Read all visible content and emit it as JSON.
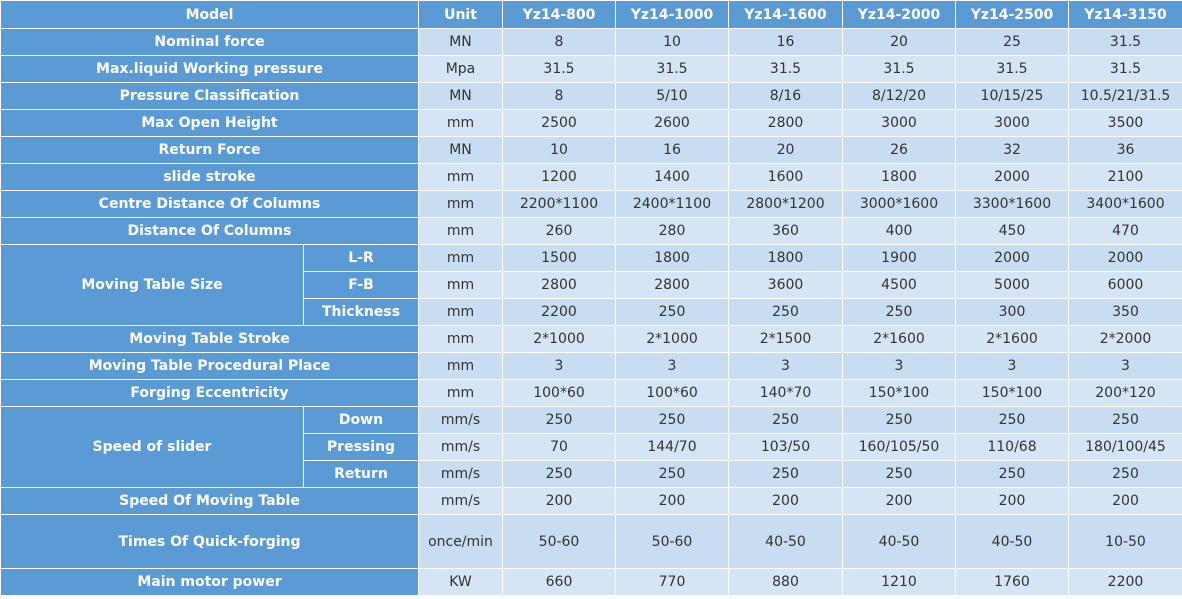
{
  "header": {
    "model": "Model",
    "unit": "Unit",
    "models": [
      "Yz14-800",
      "Yz14-1000",
      "Yz14-1600",
      "Yz14-2000",
      "Yz14-2500",
      "Yz14-3150"
    ]
  },
  "rows": [
    {
      "label": "Nominal force",
      "unit": "MN",
      "values": [
        "8",
        "10",
        "16",
        "20",
        "25",
        "31.5"
      ]
    },
    {
      "label": "Max.liquid Working pressure",
      "unit": "Mpa",
      "values": [
        "31.5",
        "31.5",
        "31.5",
        "31.5",
        "31.5",
        "31.5"
      ]
    },
    {
      "label": "Pressure Classification",
      "unit": "MN",
      "values": [
        "8",
        "5/10",
        "8/16",
        "8/12/20",
        "10/15/25",
        "10.5/21/31.5"
      ]
    },
    {
      "label": "Max Open Height",
      "unit": "mm",
      "values": [
        "2500",
        "2600",
        "2800",
        "3000",
        "3000",
        "3500"
      ]
    },
    {
      "label": "Return Force",
      "unit": "MN",
      "values": [
        "10",
        "16",
        "20",
        "26",
        "32",
        "36"
      ]
    },
    {
      "label": "slide stroke",
      "unit": "mm",
      "values": [
        "1200",
        "1400",
        "1600",
        "1800",
        "2000",
        "2100"
      ]
    },
    {
      "label": "Centre Distance Of Columns",
      "unit": "mm",
      "values": [
        "2200*1100",
        "2400*1100",
        "2800*1200",
        "3000*1600",
        "3300*1600",
        "3400*1600"
      ]
    },
    {
      "label": "Distance Of Columns",
      "unit": "mm",
      "values": [
        "260",
        "280",
        "360",
        "400",
        "450",
        "470"
      ]
    },
    {
      "label": "Moving Table Size",
      "subrows": [
        {
          "label": "L-R",
          "unit": "mm",
          "values": [
            "1500",
            "1800",
            "1800",
            "1900",
            "2000",
            "2000"
          ]
        },
        {
          "label": "F-B",
          "unit": "mm",
          "values": [
            "2800",
            "2800",
            "3600",
            "4500",
            "5000",
            "6000"
          ]
        },
        {
          "label": "Thickness",
          "unit": "mm",
          "values": [
            "2200",
            "250",
            "250",
            "250",
            "300",
            "350"
          ]
        }
      ]
    },
    {
      "label": "Moving Table Stroke",
      "unit": "mm",
      "values": [
        "2*1000",
        "2*1000",
        "2*1500",
        "2*1600",
        "2*1600",
        "2*2000"
      ]
    },
    {
      "label": "Moving Table Procedural Place",
      "unit": "mm",
      "values": [
        "3",
        "3",
        "3",
        "3",
        "3",
        "3"
      ]
    },
    {
      "label": "Forging Eccentricity",
      "unit": "mm",
      "values": [
        "100*60",
        "100*60",
        "140*70",
        "150*100",
        "150*100",
        "200*120"
      ]
    },
    {
      "label": "Speed of slider",
      "subrows": [
        {
          "label": "Down",
          "unit": "mm/s",
          "values": [
            "250",
            "250",
            "250",
            "250",
            "250",
            "250"
          ]
        },
        {
          "label": "Pressing",
          "unit": "mm/s",
          "values": [
            "70",
            "144/70",
            "103/50",
            "160/105/50",
            "110/68",
            "180/100/45"
          ]
        },
        {
          "label": "Return",
          "unit": "mm/s",
          "values": [
            "250",
            "250",
            "250",
            "250",
            "250",
            "250"
          ]
        }
      ]
    },
    {
      "label": "Speed Of Moving Table",
      "unit": "mm/s",
      "values": [
        "200",
        "200",
        "200",
        "200",
        "200",
        "200"
      ]
    },
    {
      "label": "Times Of Quick-forging",
      "unit": "once/min",
      "values": [
        "50-60",
        "50-60",
        "40-50",
        "40-50",
        "40-50",
        "10-50"
      ]
    },
    {
      "label": "Main motor power",
      "unit": "KW",
      "values": [
        "660",
        "770",
        "880",
        "1210",
        "1760",
        "2200"
      ]
    }
  ]
}
